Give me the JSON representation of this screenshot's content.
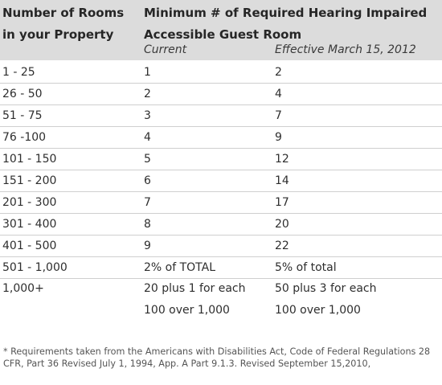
{
  "header": {
    "col1_line1": "Number of Rooms",
    "col1_line2": "in your Property",
    "col2_line1": "Minimum # of Required Hearing Impaired",
    "col2_line2": "Accessible Guest Room",
    "sub_current": "Current",
    "sub_effective": "Effective March 15, 2012"
  },
  "rows": [
    {
      "rooms": "1 - 25",
      "current": "1",
      "effective": "2"
    },
    {
      "rooms": "26 - 50",
      "current": "2",
      "effective": "4"
    },
    {
      "rooms": "51 - 75",
      "current": "3",
      "effective": "7"
    },
    {
      "rooms": "76 -100",
      "current": "4",
      "effective": "9"
    },
    {
      "rooms": "101 - 150",
      "current": "5",
      "effective": "12"
    },
    {
      "rooms": "151 - 200",
      "current": "6",
      "effective": "14"
    },
    {
      "rooms": "201 - 300",
      "current": "7",
      "effective": "17"
    },
    {
      "rooms": "301 - 400",
      "current": "8",
      "effective": "20"
    },
    {
      "rooms": "401 - 500",
      "current": "9",
      "effective": "22"
    },
    {
      "rooms": "501 - 1,000",
      "current": "2% of TOTAL",
      "effective": "5% of total"
    }
  ],
  "last_row": {
    "rooms": "1,000+",
    "current_line1": "20 plus 1 for each",
    "current_line2": "100 over 1,000",
    "effective_line1": "50  plus 3 for each",
    "effective_line2": "100 over 1,000"
  },
  "footnote": "* Requirements taken from the Americans with Disabilities Act, Code of Federal Regulations 28 CFR, Part 36 Revised July 1, 1994, App. A Part 9.1.3.  Revised September 15,2010,"
}
